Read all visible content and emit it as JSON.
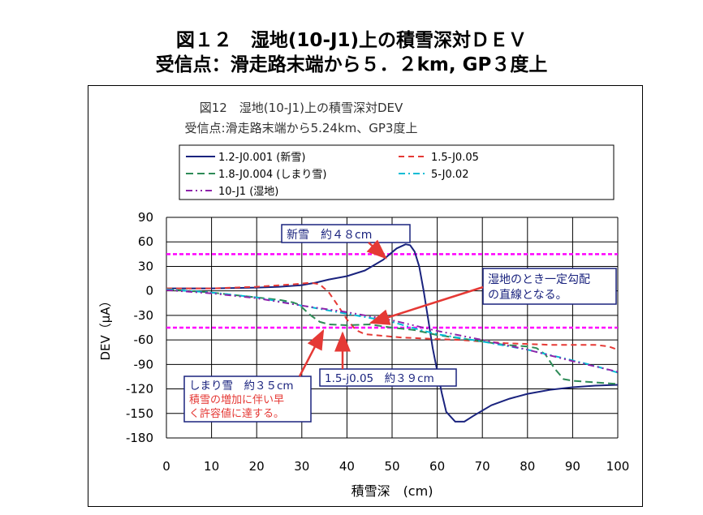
{
  "page": {
    "title_line1": "図１２　湿地(10-J1)上の積雪深対ＤＥＶ",
    "title_line2": "受信点：滑走路末端から５．２km, GP３度上"
  },
  "chart_data": {
    "type": "line",
    "title": "図12　湿地(10-J1)上の積雪深対DEV",
    "subtitle": "受信点:滑走路末端から5.24km、GP3度上",
    "xlabel": "積雪深　(cm)",
    "ylabel": "DEV（μA）",
    "xlim": [
      0,
      100
    ],
    "ylim": [
      -180,
      90
    ],
    "xticks": [
      0,
      10,
      20,
      30,
      40,
      50,
      60,
      70,
      80,
      90,
      100
    ],
    "yticks": [
      90,
      60,
      30,
      0,
      -30,
      -60,
      -90,
      -120,
      -150,
      -180
    ],
    "grid": true,
    "legend_position": "top",
    "series": [
      {
        "name": "1.2-J0.001 (新雪)",
        "color": "#1a237e",
        "dash": "solid",
        "points": [
          [
            0,
            3
          ],
          [
            10,
            3
          ],
          [
            20,
            4
          ],
          [
            25,
            5
          ],
          [
            30,
            7
          ],
          [
            33,
            10
          ],
          [
            36,
            14
          ],
          [
            40,
            18
          ],
          [
            44,
            25
          ],
          [
            48,
            38
          ],
          [
            51,
            52
          ],
          [
            53,
            57
          ],
          [
            54,
            56
          ],
          [
            55,
            48
          ],
          [
            56,
            30
          ],
          [
            57,
            0
          ],
          [
            58,
            -35
          ],
          [
            59,
            -70
          ],
          [
            60,
            -98
          ],
          [
            61,
            -125
          ],
          [
            62,
            -148
          ],
          [
            64,
            -160
          ],
          [
            66,
            -160
          ],
          [
            68,
            -153
          ],
          [
            72,
            -140
          ],
          [
            76,
            -132
          ],
          [
            80,
            -126
          ],
          [
            85,
            -121
          ],
          [
            90,
            -118
          ],
          [
            95,
            -116
          ],
          [
            100,
            -115
          ]
        ]
      },
      {
        "name": "1.5-J0.05",
        "color": "#e53935",
        "dash": "7,5",
        "points": [
          [
            0,
            3
          ],
          [
            10,
            3
          ],
          [
            20,
            5
          ],
          [
            28,
            8
          ],
          [
            32,
            10
          ],
          [
            34,
            8
          ],
          [
            36,
            -2
          ],
          [
            38,
            -18
          ],
          [
            40,
            -35
          ],
          [
            42,
            -48
          ],
          [
            44,
            -53
          ],
          [
            48,
            -55
          ],
          [
            52,
            -57
          ],
          [
            56,
            -58
          ],
          [
            60,
            -59
          ],
          [
            65,
            -60
          ],
          [
            70,
            -62
          ],
          [
            75,
            -64
          ],
          [
            80,
            -65
          ],
          [
            85,
            -66
          ],
          [
            90,
            -66
          ],
          [
            95,
            -66
          ],
          [
            98,
            -68
          ],
          [
            100,
            -72
          ]
        ]
      },
      {
        "name": "1.8-J0.004 (しまり雪)",
        "color": "#2e8b57",
        "dash": "9,5",
        "points": [
          [
            0,
            2
          ],
          [
            10,
            -2
          ],
          [
            20,
            -8
          ],
          [
            25,
            -11
          ],
          [
            28,
            -14
          ],
          [
            29,
            -16
          ],
          [
            30,
            -20
          ],
          [
            32,
            -30
          ],
          [
            34,
            -38
          ],
          [
            36,
            -41
          ],
          [
            40,
            -42
          ],
          [
            45,
            -41
          ],
          [
            50,
            -45
          ],
          [
            55,
            -48
          ],
          [
            60,
            -54
          ],
          [
            65,
            -58
          ],
          [
            70,
            -62
          ],
          [
            75,
            -66
          ],
          [
            80,
            -68
          ],
          [
            82,
            -70
          ],
          [
            84,
            -78
          ],
          [
            86,
            -95
          ],
          [
            88,
            -108
          ],
          [
            90,
            -110
          ],
          [
            95,
            -112
          ],
          [
            100,
            -114
          ]
        ]
      },
      {
        "name": "5-J0.02",
        "color": "#00bcd4",
        "dash": "8,4,2,4",
        "points": [
          [
            0,
            2
          ],
          [
            10,
            -2
          ],
          [
            20,
            -8
          ],
          [
            30,
            -18
          ],
          [
            40,
            -28
          ],
          [
            50,
            -38
          ],
          [
            55,
            -46
          ],
          [
            60,
            -53
          ],
          [
            70,
            -62
          ],
          [
            80,
            -72
          ],
          [
            90,
            -85
          ],
          [
            95,
            -92
          ],
          [
            100,
            -100
          ]
        ]
      },
      {
        "name": "10-J1 (湿地)",
        "color": "#8e24aa",
        "dash": "8,4,2,4,2,4",
        "points": [
          [
            0,
            1
          ],
          [
            10,
            -3
          ],
          [
            20,
            -9
          ],
          [
            30,
            -18
          ],
          [
            40,
            -26
          ],
          [
            50,
            -36
          ],
          [
            60,
            -49
          ],
          [
            70,
            -60
          ],
          [
            80,
            -72
          ],
          [
            90,
            -86
          ],
          [
            100,
            -99
          ]
        ]
      }
    ],
    "reference_lines": [
      {
        "y": 45,
        "color": "#ff00ff"
      },
      {
        "y": -45,
        "color": "#ff00ff"
      }
    ],
    "annotations": [
      {
        "text": "新雪　約４８cm",
        "color": "#1a237e"
      },
      {
        "text": "湿地のとき一定勾配\nの直線となる。",
        "color": "#1a237e"
      },
      {
        "text": "しまり雪　約３５cm",
        "color": "#1a237e"
      },
      {
        "text": "積雪の増加に伴い早\nく許容値に達する。",
        "color": "#e53935"
      },
      {
        "text": "1.5-j0.05　約３９cm",
        "color": "#1a237e"
      }
    ]
  }
}
